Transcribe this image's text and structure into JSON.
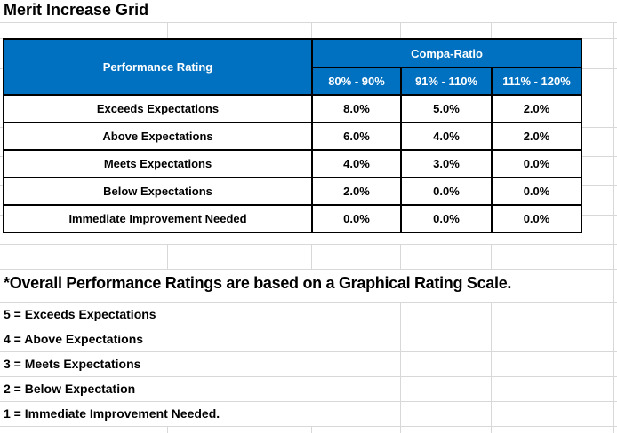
{
  "title": "Merit Increase Grid",
  "table": {
    "performance_rating_header": "Performance Rating",
    "compa_ratio_header": "Compa-Ratio",
    "col_headers": [
      "80% - 90%",
      "91% - 110%",
      "111% - 120%"
    ],
    "rows": [
      {
        "label": "Exceeds Expectations",
        "values": [
          "8.0%",
          "5.0%",
          "2.0%"
        ]
      },
      {
        "label": "Above Expectations",
        "values": [
          "6.0%",
          "4.0%",
          "2.0%"
        ]
      },
      {
        "label": "Meets Expectations",
        "values": [
          "4.0%",
          "3.0%",
          "0.0%"
        ]
      },
      {
        "label": "Below Expectations",
        "values": [
          "2.0%",
          "0.0%",
          "0.0%"
        ]
      },
      {
        "label": "Immediate Improvement Needed",
        "values": [
          "0.0%",
          "0.0%",
          "0.0%"
        ]
      }
    ]
  },
  "note": "*Overall Performance Ratings are based on a Graphical Rating Scale.",
  "legend": [
    "5 = Exceeds Expectations",
    "4 = Above Expectations",
    "3 = Meets Expectations",
    "2 = Below Expectation",
    "1 = Immediate Improvement Needed."
  ],
  "colors": {
    "header_bg": "#0070C0",
    "header_text": "#FFFFFF",
    "table_border": "#000000",
    "gridline": "#D8D8D8",
    "text": "#000000"
  }
}
